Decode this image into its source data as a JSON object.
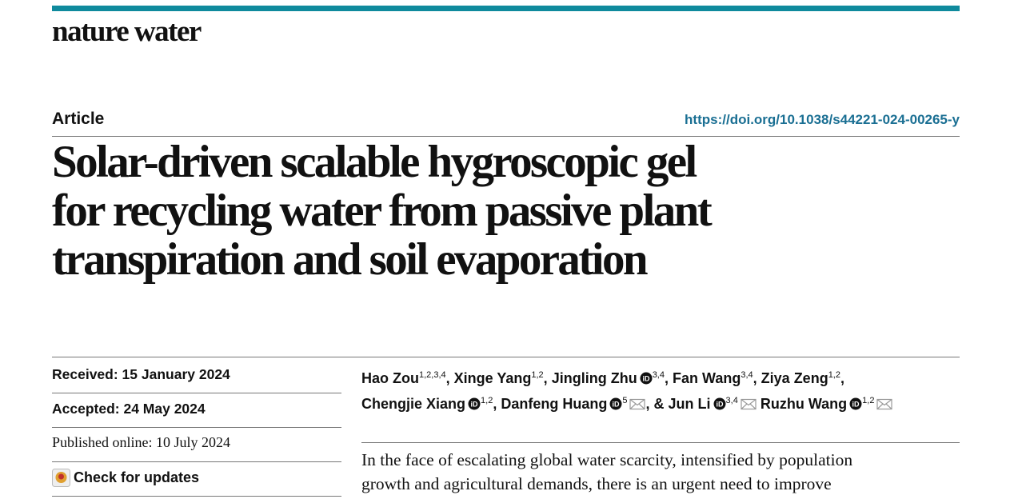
{
  "header": {
    "journal": "nature water"
  },
  "article": {
    "type": "Article",
    "doi": "https://doi.org/10.1038/s44221-024-00265-y",
    "title_lines": [
      "Solar-driven scalable hygroscopic gel",
      "for recycling water from passive plant",
      "transpiration and soil evaporation"
    ],
    "dates": {
      "received": "Received: 15 January 2024",
      "accepted": "Accepted: 24 May 2024",
      "published": "Published online: 10 July 2024"
    },
    "check_updates": "Check for updates",
    "author_lines": [
      [
        {
          "name": "Hao Zou",
          "sup": "1,2,3,4",
          "orcid": false,
          "mail": false,
          "after": ","
        },
        {
          "name": "Xinge Yang",
          "sup": "1,2",
          "orcid": false,
          "mail": false,
          "after": ","
        },
        {
          "name": "Jingling Zhu",
          "sup": "3,4",
          "orcid": true,
          "mail": false,
          "after": ","
        },
        {
          "name": "Fan Wang",
          "sup": "3,4",
          "orcid": false,
          "mail": false,
          "after": ","
        },
        {
          "name": "Ziya Zeng",
          "sup": "1,2",
          "orcid": false,
          "mail": false,
          "after": ","
        }
      ],
      [
        {
          "name": "Chengjie Xiang",
          "sup": "1,2",
          "orcid": true,
          "mail": false,
          "after": ","
        },
        {
          "name": "Danfeng Huang",
          "sup": "5",
          "orcid": true,
          "mail": true,
          "after": ","
        },
        {
          "name": "Jun Li",
          "sup": "3,4",
          "orcid": true,
          "mail": true,
          "before": "&"
        },
        {
          "name": "Ruzhu Wang",
          "sup": "1,2",
          "orcid": true,
          "mail": true
        }
      ]
    ],
    "abstract_lines": [
      "In the face of escalating global water scarcity, intensified by population",
      "growth and agricultural demands, there is an urgent need to improve"
    ]
  }
}
